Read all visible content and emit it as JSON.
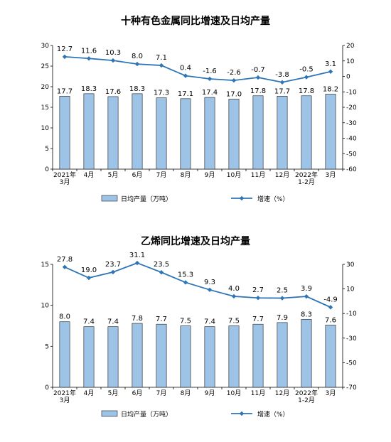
{
  "chart_data": [
    {
      "type": "bar",
      "title": "十种有色金属同比增速及日均产量",
      "categories": [
        [
          "2021年",
          "3月"
        ],
        [
          "4月"
        ],
        [
          "5月"
        ],
        [
          "6月"
        ],
        [
          "7月"
        ],
        [
          "8月"
        ],
        [
          "9月"
        ],
        [
          "10月"
        ],
        [
          "11月"
        ],
        [
          "12月"
        ],
        [
          "2022年",
          "1-2月"
        ],
        [
          "3月"
        ]
      ],
      "series": [
        {
          "name": "日均产量（万吨）",
          "type": "bar",
          "axis": "left",
          "color": "#9dc3e6",
          "values": [
            17.7,
            18.3,
            17.6,
            18.3,
            17.3,
            17.1,
            17.4,
            17.0,
            17.8,
            17.7,
            17.8,
            18.2
          ],
          "labels": [
            "17.7",
            "18.3",
            "17.6",
            "18.3",
            "17.3",
            "17.1",
            "17.4",
            "17.0",
            "17.8",
            "17.7",
            "17.8",
            "18.2"
          ]
        },
        {
          "name": "增速（%）",
          "type": "line",
          "axis": "right",
          "color": "#2e75b6",
          "values": [
            12.7,
            11.6,
            10.3,
            8.0,
            7.1,
            0.4,
            -1.6,
            -2.6,
            -0.7,
            -3.8,
            -0.5,
            3.1
          ],
          "labels": [
            "12.7",
            "11.6",
            "10.3",
            "8.0",
            "7.1",
            "0.4",
            "-1.6",
            "-2.6",
            "-0.7",
            "-3.8",
            "-0.5",
            "3.1"
          ]
        }
      ],
      "y_left": {
        "min": 0,
        "max": 30,
        "ticks": [
          "0",
          "5",
          "10",
          "15",
          "20",
          "25",
          "30"
        ]
      },
      "y_right": {
        "min": -60,
        "max": 20,
        "ticks": [
          "-60",
          "-50",
          "-40",
          "-30",
          "-20",
          "-10",
          "0",
          "10",
          "20"
        ]
      },
      "grid": false,
      "legend": "bottom"
    },
    {
      "type": "bar",
      "title": "乙烯同比增速及日均产量",
      "categories": [
        [
          "2021年",
          "3月"
        ],
        [
          "4月"
        ],
        [
          "5月"
        ],
        [
          "6月"
        ],
        [
          "7月"
        ],
        [
          "8月"
        ],
        [
          "9月"
        ],
        [
          "10月"
        ],
        [
          "11月"
        ],
        [
          "12月"
        ],
        [
          "2022年",
          "1-2月"
        ],
        [
          "3月"
        ]
      ],
      "series": [
        {
          "name": "日均产量（万吨）",
          "type": "bar",
          "axis": "left",
          "color": "#9dc3e6",
          "values": [
            8.0,
            7.4,
            7.4,
            7.8,
            7.7,
            7.5,
            7.4,
            7.5,
            7.7,
            7.9,
            8.3,
            7.6
          ],
          "labels": [
            "8.0",
            "7.4",
            "7.4",
            "7.8",
            "7.7",
            "7.5",
            "7.4",
            "7.5",
            "7.7",
            "7.9",
            "8.3",
            "7.6"
          ]
        },
        {
          "name": "增速（%）",
          "type": "line",
          "axis": "right",
          "color": "#2e75b6",
          "values": [
            27.8,
            19.0,
            23.7,
            31.1,
            23.5,
            15.3,
            9.3,
            4.0,
            2.7,
            2.5,
            3.9,
            -4.9
          ],
          "labels": [
            "27.8",
            "19.0",
            "23.7",
            "31.1",
            "23.5",
            "15.3",
            "9.3",
            "4.0",
            "2.7",
            "2.5",
            "3.9",
            "-4.9"
          ]
        }
      ],
      "y_left": {
        "min": 0,
        "max": 15,
        "ticks": [
          "0",
          "5",
          "10",
          "15"
        ]
      },
      "y_right": {
        "min": -70,
        "max": 30,
        "ticks": [
          "-70",
          "-50",
          "-30",
          "-10",
          "10",
          "30"
        ]
      },
      "grid": false,
      "legend": "bottom"
    }
  ]
}
